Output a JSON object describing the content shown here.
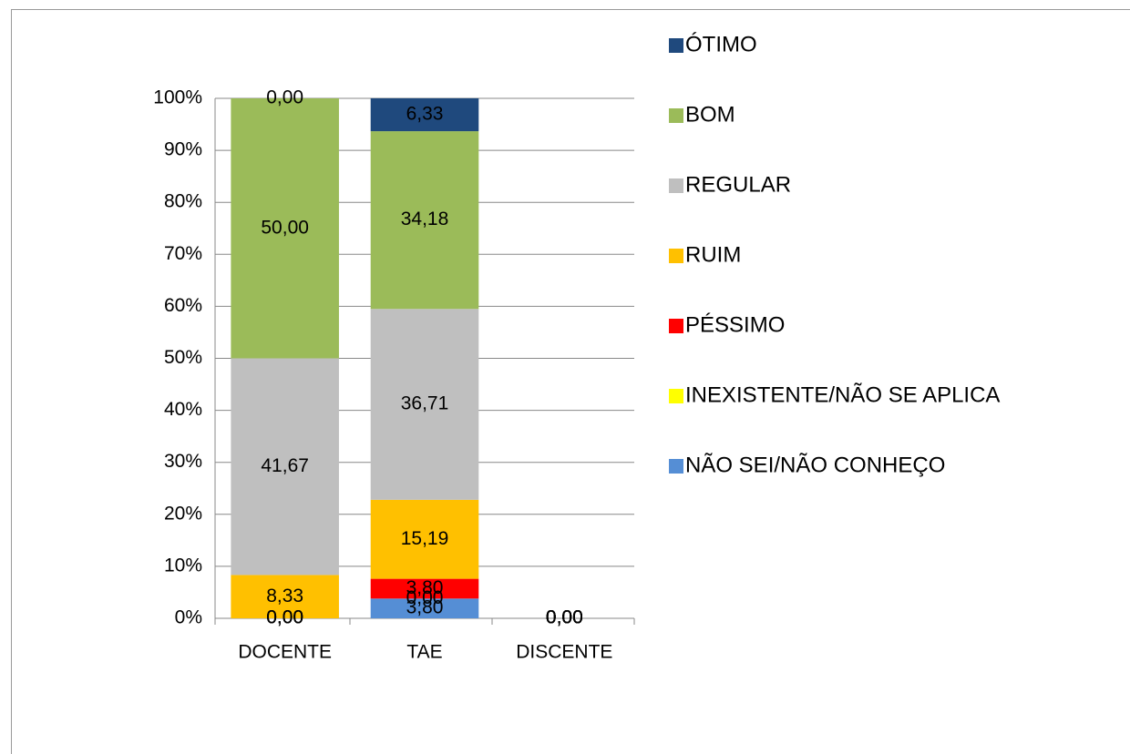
{
  "chart_data": {
    "type": "stacked_bar",
    "categories": [
      "DOCENTE",
      "TAE",
      "DISCENTE"
    ],
    "series": [
      {
        "name": "ÓTIMO",
        "color": "#1f497d",
        "values": [
          0.0,
          6.33,
          0.0
        ],
        "value_labels": [
          "0,00",
          "6,33",
          "0,00"
        ]
      },
      {
        "name": "BOM",
        "color": "#9bbb59",
        "values": [
          50.0,
          34.18,
          0.0
        ],
        "value_labels": [
          "50,00",
          "34,18",
          "0,00"
        ]
      },
      {
        "name": "REGULAR",
        "color": "#bfbfbf",
        "values": [
          41.67,
          36.71,
          0.0
        ],
        "value_labels": [
          "41,67",
          "36,71",
          "0,00"
        ]
      },
      {
        "name": "RUIM",
        "color": "#ffc000",
        "values": [
          8.33,
          15.19,
          0.0
        ],
        "value_labels": [
          "8,33",
          "15,19",
          "0,00"
        ]
      },
      {
        "name": "PÉSSIMO",
        "color": "#ff0000",
        "values": [
          0.0,
          3.8,
          0.0
        ],
        "value_labels": [
          "0,00",
          "3,80",
          "0,00"
        ]
      },
      {
        "name": "INEXISTENTE/NÃO SE APLICA",
        "color": "#ffff00",
        "values": [
          0.0,
          0.0,
          0.0
        ],
        "value_labels": [
          "0,00",
          "0,00",
          "0,00"
        ]
      },
      {
        "name": "NÃO SEI/NÃO CONHEÇO",
        "color": "#558ed5",
        "values": [
          0.0,
          3.8,
          0.0
        ],
        "value_labels": [
          "0,00",
          "3,80",
          "0,00"
        ]
      }
    ],
    "ylim": [
      0,
      100
    ],
    "yticks": [
      {
        "value": 0,
        "label": "0%"
      },
      {
        "value": 10,
        "label": "10%"
      },
      {
        "value": 20,
        "label": "20%"
      },
      {
        "value": 30,
        "label": "30%"
      },
      {
        "value": 40,
        "label": "40%"
      },
      {
        "value": 50,
        "label": "50%"
      },
      {
        "value": 60,
        "label": "60%"
      },
      {
        "value": 70,
        "label": "70%"
      },
      {
        "value": 80,
        "label": "80%"
      },
      {
        "value": 90,
        "label": "90%"
      },
      {
        "value": 100,
        "label": "100%"
      }
    ],
    "grid": true,
    "legend": "right"
  }
}
